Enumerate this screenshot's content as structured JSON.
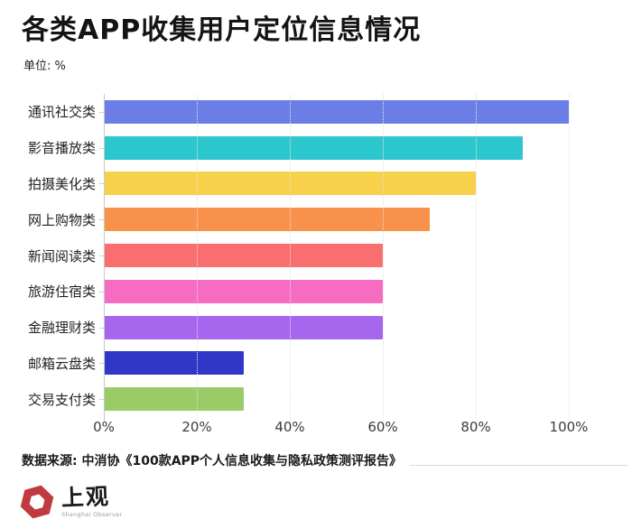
{
  "header": {
    "title": "各类APP收集用户定位信息情况",
    "unit_label": "单位: %"
  },
  "chart_data": {
    "type": "bar",
    "orientation": "horizontal",
    "title": "各类APP收集用户定位信息情况",
    "unit": "%",
    "categories": [
      "通讯社交类",
      "影音播放类",
      "拍摄美化类",
      "网上购物类",
      "新闻阅读类",
      "旅游住宿类",
      "金融理财类",
      "邮箱云盘类",
      "交易支付类"
    ],
    "values": [
      100,
      90,
      80,
      70,
      60,
      60,
      60,
      30,
      30
    ],
    "bar_colors": [
      "#6b7ee6",
      "#2cc7ce",
      "#f7d14b",
      "#f8914a",
      "#fb6e70",
      "#f76cc3",
      "#a667ee",
      "#3037c8",
      "#9bcb66"
    ],
    "x_ticks": [
      "0%",
      "20%",
      "40%",
      "60%",
      "80%",
      "100%"
    ],
    "xlim": [
      0,
      100
    ],
    "grid": "vertical-dotted",
    "legend": "none",
    "xlabel": "",
    "ylabel": ""
  },
  "footer": {
    "source": "数据来源: 中消协《100款APP个人信息收集与隐私政策测评报告》",
    "logo_text": "上观",
    "logo_subtext": "Shanghai Observer"
  },
  "colors": {
    "logo_red": "#c13a3f",
    "title_text": "#141414",
    "axis_line": "#c9c9c9",
    "gridline": "#e0e0e0"
  }
}
